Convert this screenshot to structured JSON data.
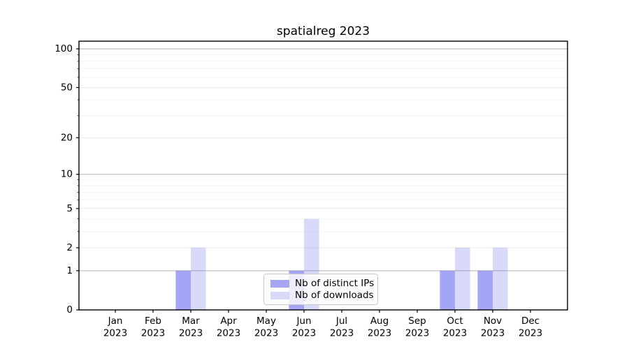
{
  "chart_data": {
    "type": "bar",
    "title": "spatialreg 2023",
    "year": "2023",
    "categories": [
      "Jan",
      "Feb",
      "Mar",
      "Apr",
      "May",
      "Jun",
      "Jul",
      "Aug",
      "Sep",
      "Oct",
      "Nov",
      "Dec"
    ],
    "series": [
      {
        "name": "Nb of distinct IPs",
        "values": [
          0,
          0,
          1,
          0,
          0,
          1,
          0,
          0,
          0,
          1,
          1,
          0
        ],
        "color": "rgba(110,110,240,0.62)"
      },
      {
        "name": "Nb of downloads",
        "values": [
          0,
          0,
          2,
          0,
          0,
          4,
          0,
          0,
          0,
          2,
          2,
          0
        ],
        "color": "rgba(110,110,240,0.26)"
      }
    ],
    "y_axis": {
      "scale": "log1p",
      "ticks": [
        0,
        1,
        2,
        5,
        10,
        20,
        50,
        100
      ],
      "minor_ticks": [
        3,
        4,
        6,
        7,
        8,
        9,
        30,
        40,
        60,
        70,
        80,
        90
      ],
      "strong_grid_ticks": [
        1,
        10,
        100
      ],
      "ylim": [
        0,
        100
      ]
    },
    "legend": {
      "position": "inside-bottom-center"
    },
    "grid": "on"
  },
  "colors": {
    "axis": "#000000",
    "text": "#000000",
    "grid_strong": "#bdbdbd",
    "grid_weak": "#e8e8e8",
    "grid_minor": "#f4f4f4",
    "legend_border": "#c8c8c8",
    "background": "#ffffff"
  }
}
